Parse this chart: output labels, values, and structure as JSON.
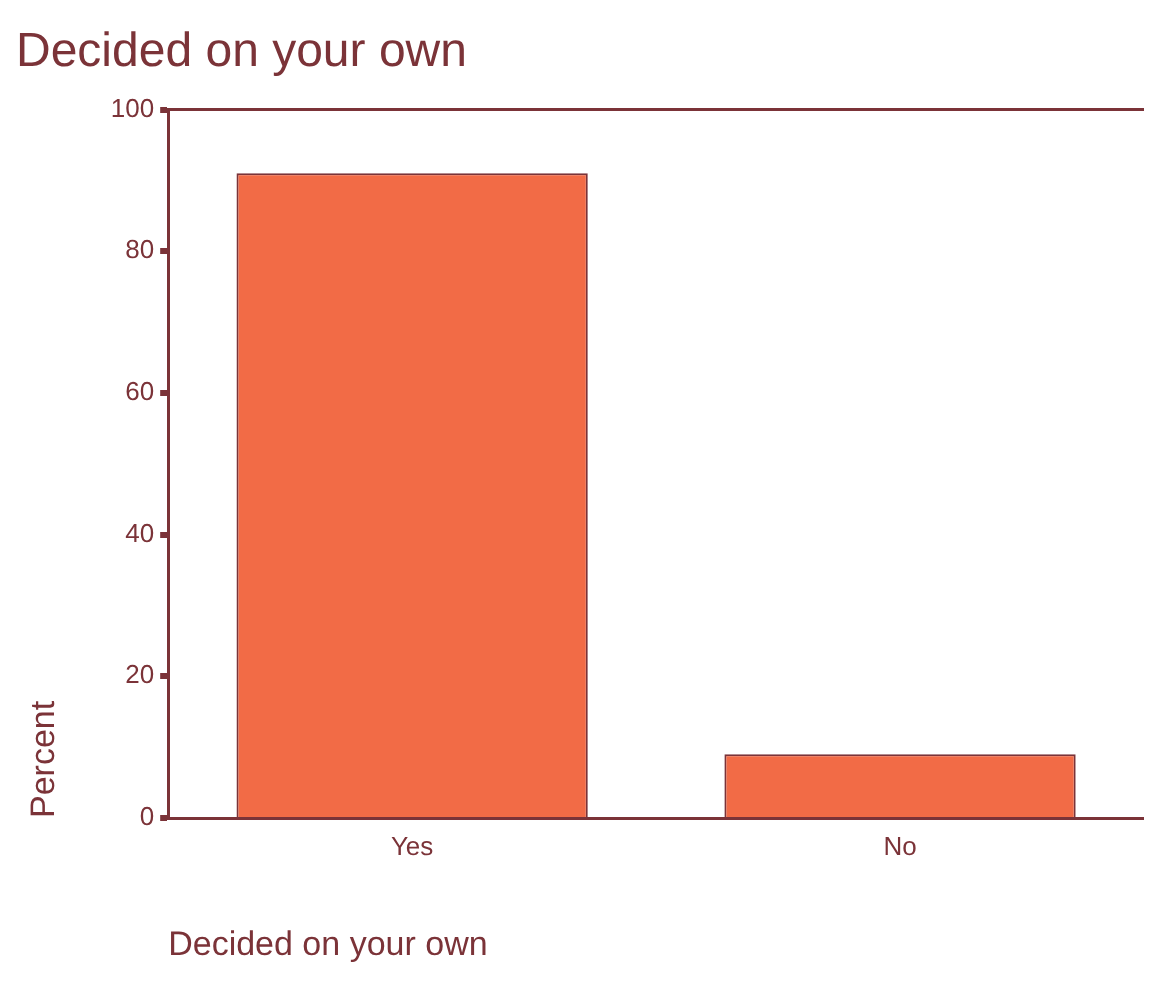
{
  "chart_data": {
    "type": "bar",
    "title": "Decided on your own",
    "xlabel": "Decided on your own",
    "ylabel": "Percent",
    "categories": [
      "Yes",
      "No"
    ],
    "values": [
      91,
      9
    ],
    "color": "#f26b46",
    "ylim": [
      0,
      100
    ],
    "yticks": [
      0,
      20,
      40,
      60,
      80,
      100
    ],
    "grid": false,
    "legend": false
  }
}
